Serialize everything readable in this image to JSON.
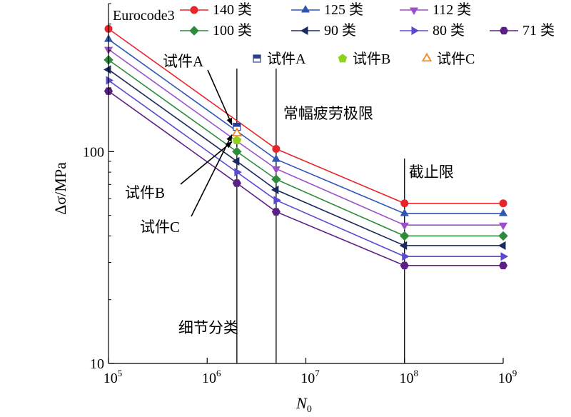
{
  "chart_data": {
    "type": "line",
    "title": "Eurocode3",
    "xlabel": "N",
    "xlabel_sub": "0",
    "ylabel": "Δσ/MPa",
    "x_scale": "log",
    "y_scale": "log",
    "xlim": [
      100000,
      1000000000
    ],
    "ylim": [
      10,
      500
    ],
    "x_ticks": [
      {
        "value": 100000,
        "base": "10",
        "exp": "5"
      },
      {
        "value": 1000000,
        "base": "10",
        "exp": "6"
      },
      {
        "value": 10000000,
        "base": "10",
        "exp": "7"
      },
      {
        "value": 100000000,
        "base": "10",
        "exp": "8"
      },
      {
        "value": 1000000000,
        "base": "10",
        "exp": "9"
      }
    ],
    "y_ticks": [
      {
        "value": 10,
        "label": "10"
      },
      {
        "value": 100,
        "label": "100"
      }
    ],
    "x": [
      100000,
      2000000,
      5000000,
      100000000,
      1000000000
    ],
    "series": [
      {
        "name": "140 类",
        "color": "#e8262a",
        "marker": "circle",
        "values": [
          380,
          140,
          103,
          57,
          57
        ]
      },
      {
        "name": "125 类",
        "color": "#2f56b5",
        "marker": "triangle-up",
        "values": [
          339,
          125,
          92,
          51,
          51
        ]
      },
      {
        "name": "112 类",
        "color": "#9b4fc9",
        "marker": "triangle-down",
        "values": [
          304,
          112,
          83,
          45,
          45
        ]
      },
      {
        "name": "100 类",
        "color": "#2e8b3c",
        "marker": "diamond",
        "values": [
          271,
          100,
          74,
          40,
          40
        ]
      },
      {
        "name": "90 类",
        "color": "#1a2a5e",
        "marker": "triangle-left",
        "values": [
          244,
          90,
          66,
          36,
          36
        ]
      },
      {
        "name": "80 类",
        "color": "#5a4ad1",
        "marker": "triangle-right",
        "values": [
          217,
          80,
          59,
          32,
          32
        ]
      },
      {
        "name": "71 类",
        "color": "#5c1f86",
        "marker": "hexagon",
        "values": [
          193,
          71,
          52,
          29,
          29
        ]
      }
    ],
    "specimens": [
      {
        "name": "试件A",
        "color": "#2c3f8c",
        "marker": "square-half",
        "x": 2000000,
        "y": 131
      },
      {
        "name": "试件B",
        "color": "#8fd21e",
        "marker": "pentagon",
        "x": 2000000,
        "y": 113
      },
      {
        "name": "试件C",
        "color": "#f08a24",
        "marker": "triangle-open",
        "x": 2000000,
        "y": 122
      }
    ],
    "vertical_lines": [
      {
        "x": 2000000,
        "label": "细节分类"
      },
      {
        "x": 5000000,
        "label": "常幅疲劳极限"
      },
      {
        "x": 100000000,
        "label": "截止限"
      }
    ],
    "annotations": [
      {
        "text": "试件A",
        "target_x": 2000000,
        "target_y": 131
      },
      {
        "text": "试件B",
        "target_x": 2000000,
        "target_y": 113
      },
      {
        "text": "试件C",
        "target_x": 2000000,
        "target_y": 122
      }
    ],
    "grid": false,
    "legend_position": "top-right"
  }
}
